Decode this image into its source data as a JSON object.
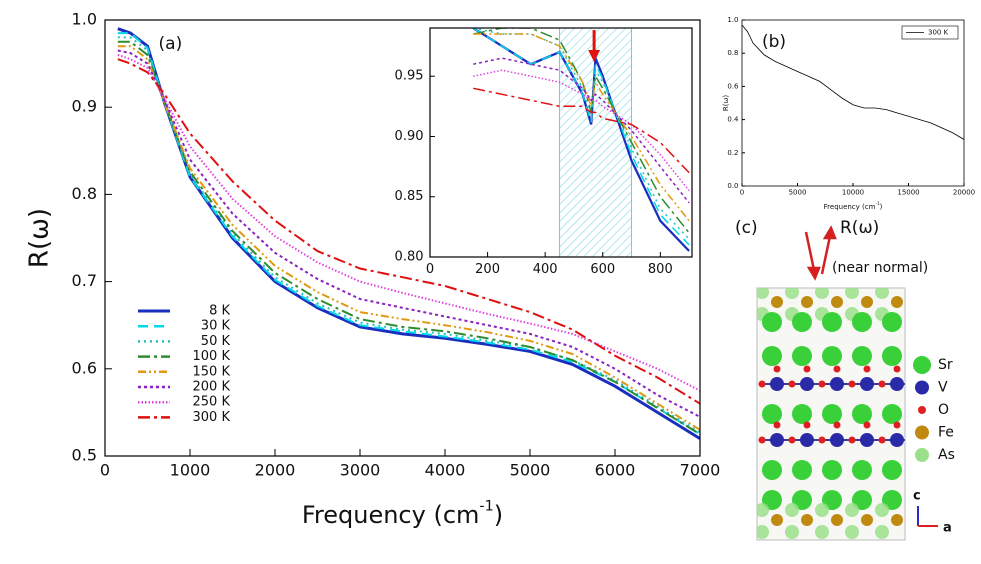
{
  "chart_data": [
    {
      "type": "line",
      "label": "(a)",
      "ylabel": "R(ω)",
      "xlabel": {
        "text": "Frequency (cm",
        "sup": "-1",
        "close": ")"
      },
      "xlim": [
        0,
        7000
      ],
      "ylim": [
        0.5,
        1.0
      ],
      "xticks": [
        0,
        1000,
        2000,
        3000,
        4000,
        5000,
        6000,
        7000
      ],
      "yticks": [
        0.5,
        0.6,
        0.7,
        0.8,
        0.9,
        {
          "value": 1.0,
          "label": "1.0"
        }
      ],
      "legend": "lower left",
      "x": [
        150,
        300,
        500,
        700,
        1000,
        1500,
        2000,
        2500,
        3000,
        3500,
        4000,
        4500,
        5000,
        5500,
        6000,
        6500,
        7000
      ],
      "series": [
        {
          "name": "8 K",
          "color": "#1a2fbf",
          "dash": "solid",
          "values": [
            0.99,
            0.985,
            0.97,
            0.905,
            0.82,
            0.75,
            0.7,
            0.67,
            0.648,
            0.64,
            0.635,
            0.628,
            0.62,
            0.605,
            0.58,
            0.55,
            0.52
          ]
        },
        {
          "name": "30 K",
          "color": "#00d8e8",
          "dash": "dashed",
          "values": [
            0.985,
            0.985,
            0.968,
            0.905,
            0.82,
            0.752,
            0.702,
            0.672,
            0.65,
            0.643,
            0.637,
            0.63,
            0.622,
            0.608,
            0.585,
            0.555,
            0.525
          ]
        },
        {
          "name": "50 K",
          "color": "#20c0c0",
          "dash": "dotted",
          "values": [
            0.98,
            0.98,
            0.965,
            0.905,
            0.823,
            0.755,
            0.705,
            0.675,
            0.653,
            0.645,
            0.64,
            0.632,
            0.625,
            0.61,
            0.587,
            0.557,
            0.527
          ]
        },
        {
          "name": "100 K",
          "color": "#2e8b2e",
          "dash": "dashdot",
          "values": [
            0.975,
            0.975,
            0.96,
            0.905,
            0.826,
            0.758,
            0.71,
            0.68,
            0.657,
            0.648,
            0.643,
            0.635,
            0.625,
            0.61,
            0.585,
            0.555,
            0.525
          ]
        },
        {
          "name": "150 K",
          "color": "#e09a10",
          "dash": "dashdotdot",
          "values": [
            0.97,
            0.97,
            0.955,
            0.905,
            0.83,
            0.765,
            0.718,
            0.688,
            0.665,
            0.657,
            0.65,
            0.642,
            0.632,
            0.617,
            0.59,
            0.56,
            0.53
          ]
        },
        {
          "name": "200 K",
          "color": "#8b1fc0",
          "dash": "shortdot",
          "values": [
            0.965,
            0.962,
            0.95,
            0.908,
            0.84,
            0.778,
            0.733,
            0.703,
            0.68,
            0.67,
            0.66,
            0.65,
            0.64,
            0.625,
            0.6,
            0.57,
            0.545
          ]
        },
        {
          "name": "250 K",
          "color": "#e040e0",
          "dash": "finedot",
          "values": [
            0.96,
            0.955,
            0.945,
            0.91,
            0.855,
            0.795,
            0.752,
            0.722,
            0.7,
            0.687,
            0.675,
            0.663,
            0.652,
            0.64,
            0.62,
            0.6,
            0.575
          ]
        },
        {
          "name": "300 K",
          "color": "#e01010",
          "dash": "dashdot",
          "values": [
            0.955,
            0.95,
            0.94,
            0.915,
            0.87,
            0.815,
            0.77,
            0.735,
            0.715,
            0.705,
            0.695,
            0.68,
            0.665,
            0.645,
            0.615,
            0.59,
            0.56
          ]
        }
      ]
    },
    {
      "type": "line",
      "xlim": [
        0,
        910
      ],
      "ylim": [
        0.8,
        0.99
      ],
      "xticks": [
        0,
        200,
        400,
        600,
        800
      ],
      "yticks": [
        {
          "value": 0.8,
          "label": "0.80"
        },
        0.85,
        {
          "value": 0.9,
          "label": "0.90"
        },
        0.95
      ],
      "highlight": [
        450,
        700
      ],
      "arrow_x": 570,
      "x": [
        150,
        250,
        350,
        450,
        530,
        560,
        575,
        600,
        700,
        800,
        900
      ],
      "series": [
        {
          "name": "8 K",
          "color": "#1a2fbf",
          "dash": "solid",
          "values": [
            0.99,
            0.975,
            0.96,
            0.97,
            0.935,
            0.91,
            0.965,
            0.95,
            0.88,
            0.83,
            0.805
          ]
        },
        {
          "name": "30 K",
          "color": "#00d8e8",
          "dash": "dashed",
          "values": [
            0.99,
            0.975,
            0.96,
            0.97,
            0.935,
            0.912,
            0.96,
            0.948,
            0.885,
            0.835,
            0.81
          ]
        },
        {
          "name": "50 K",
          "color": "#20c0c0",
          "dash": "dotted",
          "values": [
            0.99,
            0.985,
            0.985,
            0.975,
            0.94,
            0.915,
            0.955,
            0.945,
            0.89,
            0.84,
            0.815
          ]
        },
        {
          "name": "100 K",
          "color": "#2e8b2e",
          "dash": "dashdot",
          "values": [
            0.985,
            0.99,
            0.99,
            0.98,
            0.945,
            0.92,
            0.95,
            0.94,
            0.895,
            0.85,
            0.82
          ]
        },
        {
          "name": "150 K",
          "color": "#e09a10",
          "dash": "dashdotdot",
          "values": [
            0.985,
            0.985,
            0.985,
            0.975,
            0.945,
            0.925,
            0.945,
            0.935,
            0.9,
            0.86,
            0.83
          ]
        },
        {
          "name": "200 K",
          "color": "#8b1fc0",
          "dash": "shortdot",
          "values": [
            0.96,
            0.965,
            0.96,
            0.955,
            0.94,
            0.93,
            0.935,
            0.93,
            0.905,
            0.875,
            0.845
          ]
        },
        {
          "name": "250 K",
          "color": "#e040e0",
          "dash": "finedot",
          "values": [
            0.95,
            0.955,
            0.95,
            0.945,
            0.935,
            0.93,
            0.93,
            0.925,
            0.91,
            0.885,
            0.855
          ]
        },
        {
          "name": "300 K",
          "color": "#e01010",
          "dash": "dashdot",
          "values": [
            0.94,
            0.935,
            0.93,
            0.925,
            0.925,
            0.92,
            0.92,
            0.915,
            0.91,
            0.895,
            0.87
          ]
        }
      ]
    },
    {
      "type": "line",
      "label": "(b)",
      "ylabel": "R(ω)",
      "xlabel": {
        "text": "Frequency (cm",
        "sup": "-1",
        "close": ")"
      },
      "xlim": [
        0,
        20000
      ],
      "ylim": [
        0,
        1.0
      ],
      "xticks": [
        0,
        5000,
        10000,
        15000,
        20000
      ],
      "yticks": [
        {
          "value": 0,
          "label": "0.0"
        },
        0.2,
        0.4,
        0.6,
        0.8,
        {
          "value": 1.0,
          "label": "1.0"
        }
      ],
      "legend": "upper right",
      "x": [
        0,
        500,
        1000,
        2000,
        3000,
        4000,
        5000,
        6000,
        7000,
        8000,
        9000,
        10000,
        11000,
        12000,
        13000,
        14000,
        15000,
        16000,
        17000,
        18000,
        19000,
        20000
      ],
      "series": [
        {
          "name": "300 K",
          "color": "#000000",
          "dash": "solid",
          "values": [
            0.97,
            0.93,
            0.86,
            0.79,
            0.75,
            0.72,
            0.69,
            0.66,
            0.63,
            0.58,
            0.53,
            0.49,
            0.47,
            0.47,
            0.46,
            0.44,
            0.42,
            0.4,
            0.38,
            0.35,
            0.32,
            0.28
          ]
        }
      ]
    }
  ],
  "panel_c": {
    "label": "(c)",
    "reflect": "R(ω)",
    "incidence": "(near normal)",
    "elements": [
      "Sr",
      "V",
      "O",
      "Fe",
      "As"
    ],
    "axis_c": "c",
    "axis_a": "a"
  }
}
